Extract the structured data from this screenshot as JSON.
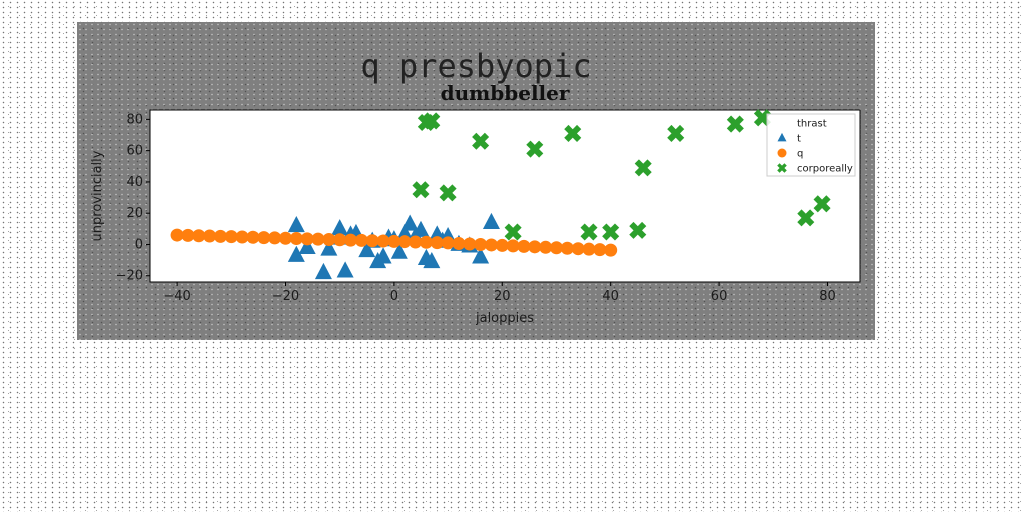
{
  "chart_data": {
    "type": "scatter",
    "suptitle": "q presbyopic",
    "title": "dumbbeller",
    "xlabel": "jaloppies",
    "ylabel": "unprovincially",
    "xlim": [
      -45,
      86
    ],
    "ylim": [
      -24,
      86
    ],
    "xticks": [
      -40,
      -20,
      0,
      20,
      40,
      60,
      80
    ],
    "yticks": [
      -20,
      0,
      20,
      40,
      60,
      80
    ],
    "legend_position": "upper-right",
    "series": [
      {
        "name": "thrast",
        "marker": "none",
        "color": "#ffffff",
        "x": [],
        "y": []
      },
      {
        "name": "t",
        "marker": "triangle",
        "color": "#1f77b4",
        "x": [
          -18,
          -18,
          -16,
          -13,
          -12,
          -10,
          -10,
          -9,
          -8,
          -7,
          -5,
          -4,
          -3,
          -2,
          -1,
          0,
          1,
          2,
          3,
          4,
          5,
          6,
          7,
          8,
          9,
          10,
          12,
          14,
          16,
          18
        ],
        "y": [
          12,
          -7,
          -2,
          -18,
          -3,
          10,
          4,
          -17,
          6,
          7,
          -4,
          2,
          -11,
          -8,
          4,
          3,
          -5,
          7,
          13,
          5,
          9,
          -9,
          -11,
          6,
          2,
          5,
          0,
          -1,
          -8,
          14
        ]
      },
      {
        "name": "q",
        "marker": "circle",
        "color": "#ff7f0e",
        "x": [
          -40,
          -38,
          -36,
          -34,
          -32,
          -30,
          -28,
          -26,
          -24,
          -22,
          -20,
          -18,
          -16,
          -14,
          -12,
          -10,
          -8,
          -6,
          -4,
          -2,
          0,
          2,
          4,
          6,
          8,
          10,
          12,
          14,
          16,
          18,
          20,
          22,
          24,
          26,
          28,
          30,
          32,
          34,
          36,
          38,
          40
        ],
        "y": [
          6,
          5.8,
          5.6,
          5.4,
          5.2,
          5,
          4.8,
          4.6,
          4.4,
          4.2,
          4,
          3.8,
          3.6,
          3.4,
          3.2,
          3,
          2.8,
          2.6,
          2.4,
          2.2,
          2,
          1.8,
          1.6,
          1.4,
          1.2,
          1,
          0.6,
          0.3,
          0,
          -0.3,
          -0.6,
          -0.9,
          -1.2,
          -1.5,
          -1.8,
          -2.1,
          -2.4,
          -2.7,
          -3.0,
          -3.3,
          -3.6
        ]
      },
      {
        "name": "corporeally",
        "marker": "x",
        "color": "#2ca02c",
        "x": [
          6,
          7,
          5,
          10,
          16,
          22,
          26,
          33,
          36,
          40,
          45,
          46,
          52,
          63,
          68,
          76,
          79
        ],
        "y": [
          78,
          79,
          35,
          33,
          66,
          8,
          61,
          71,
          8,
          8,
          9,
          49,
          71,
          77,
          81,
          17,
          26
        ]
      }
    ]
  }
}
